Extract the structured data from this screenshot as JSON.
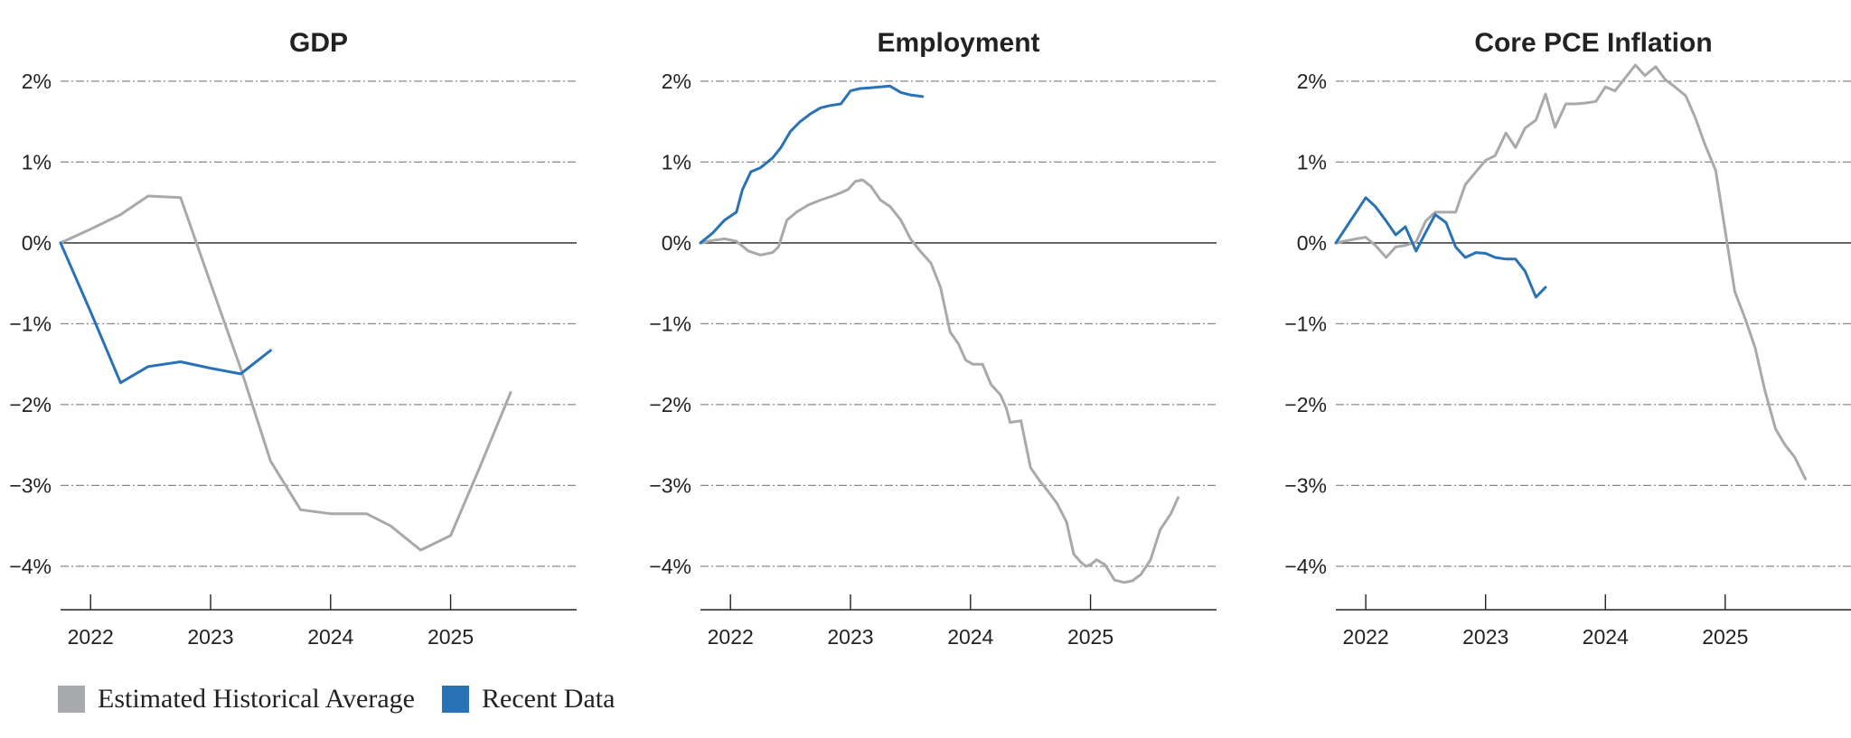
{
  "legend": [
    {
      "label": "Estimated Historical Average",
      "color": "#a7a9ac"
    },
    {
      "label": "Recent Data",
      "color": "#2a72b6"
    }
  ],
  "chart_data": [
    {
      "type": "line",
      "title": "GDP",
      "xlim": [
        2021.75,
        2026.05
      ],
      "ylim": [
        -4.5,
        2.2
      ],
      "yticks": [
        2,
        1,
        0,
        -1,
        -2,
        -3,
        -4
      ],
      "ytick_labels": [
        "2%",
        "1%",
        "0%",
        "−1%",
        "−2%",
        "−3%",
        "−4%"
      ],
      "xticks": [
        2022,
        2023,
        2024,
        2025
      ],
      "xtick_labels": [
        "2022",
        "2023",
        "2024",
        "2025"
      ],
      "grid": true,
      "series": [
        {
          "name": "Estimated Historical Average",
          "color": "#a7a9ac",
          "x": [
            2021.75,
            2022.0,
            2022.25,
            2022.48,
            2022.75,
            2023.0,
            2023.25,
            2023.5,
            2023.75,
            2024.0,
            2024.3,
            2024.5,
            2024.75,
            2025.0,
            2025.25,
            2025.5
          ],
          "y": [
            0,
            0.17,
            0.35,
            0.58,
            0.56,
            -0.5,
            -1.55,
            -2.7,
            -3.3,
            -3.35,
            -3.35,
            -3.5,
            -3.8,
            -3.62,
            -2.75,
            -1.85
          ]
        },
        {
          "name": "Recent Data",
          "color": "#2a72b6",
          "x": [
            2021.75,
            2022.0,
            2022.25,
            2022.48,
            2022.75,
            2023.0,
            2023.25,
            2023.5
          ],
          "y": [
            0,
            -0.85,
            -1.73,
            -1.53,
            -1.47,
            -1.55,
            -1.62,
            -1.33
          ]
        }
      ]
    },
    {
      "type": "line",
      "title": "Employment",
      "xlim": [
        2021.75,
        2026.05
      ],
      "ylim": [
        -4.5,
        2.2
      ],
      "yticks": [
        2,
        1,
        0,
        -1,
        -2,
        -3,
        -4
      ],
      "ytick_labels": [
        "2%",
        "1%",
        "0%",
        "−1%",
        "−2%",
        "−3%",
        "−4%"
      ],
      "xticks": [
        2022,
        2023,
        2024,
        2025
      ],
      "xtick_labels": [
        "2022",
        "2023",
        "2024",
        "2025"
      ],
      "grid": true,
      "series": [
        {
          "name": "Estimated Historical Average",
          "color": "#a7a9ac",
          "x": [
            2021.75,
            2021.85,
            2021.95,
            2022.05,
            2022.15,
            2022.25,
            2022.35,
            2022.4,
            2022.47,
            2022.55,
            2022.65,
            2022.75,
            2022.85,
            2022.92,
            2022.98,
            2023.04,
            2023.1,
            2023.17,
            2023.25,
            2023.33,
            2023.42,
            2023.5,
            2023.58,
            2023.67,
            2023.75,
            2023.83,
            2023.9,
            2023.96,
            2024.02,
            2024.1,
            2024.17,
            2024.25,
            2024.3,
            2024.33,
            2024.42,
            2024.5,
            2024.58,
            2024.65,
            2024.72,
            2024.8,
            2024.86,
            2024.92,
            2024.96,
            2025.0,
            2025.05,
            2025.12,
            2025.2,
            2025.28,
            2025.35,
            2025.42,
            2025.5,
            2025.58,
            2025.67,
            2025.73
          ],
          "y": [
            0,
            0.03,
            0.05,
            0.02,
            -0.1,
            -0.15,
            -0.12,
            -0.05,
            0.28,
            0.38,
            0.47,
            0.53,
            0.58,
            0.62,
            0.66,
            0.76,
            0.78,
            0.7,
            0.53,
            0.45,
            0.28,
            0.05,
            -0.1,
            -0.25,
            -0.55,
            -1.1,
            -1.25,
            -1.45,
            -1.5,
            -1.5,
            -1.75,
            -1.88,
            -2.05,
            -2.22,
            -2.2,
            -2.78,
            -2.95,
            -3.08,
            -3.22,
            -3.45,
            -3.85,
            -3.95,
            -4.0,
            -3.98,
            -3.92,
            -3.98,
            -4.17,
            -4.2,
            -4.18,
            -4.1,
            -3.92,
            -3.55,
            -3.35,
            -3.15
          ]
        },
        {
          "name": "Recent Data",
          "color": "#2a72b6",
          "x": [
            2021.75,
            2021.85,
            2021.95,
            2022.05,
            2022.1,
            2022.17,
            2022.25,
            2022.35,
            2022.42,
            2022.5,
            2022.58,
            2022.67,
            2022.75,
            2022.83,
            2022.92,
            2023.0,
            2023.08,
            2023.17,
            2023.33,
            2023.42,
            2023.5,
            2023.6
          ],
          "y": [
            0,
            0.12,
            0.28,
            0.38,
            0.66,
            0.88,
            0.93,
            1.05,
            1.18,
            1.38,
            1.5,
            1.6,
            1.67,
            1.7,
            1.72,
            1.88,
            1.91,
            1.92,
            1.94,
            1.86,
            1.83,
            1.81
          ]
        }
      ]
    },
    {
      "type": "line",
      "title": "Core PCE Inflation",
      "xlim": [
        2021.75,
        2026.05
      ],
      "ylim": [
        -4.5,
        2.2
      ],
      "yticks": [
        2,
        1,
        0,
        -1,
        -2,
        -3,
        -4
      ],
      "ytick_labels": [
        "2%",
        "1%",
        "0%",
        "−1%",
        "−2%",
        "−3%",
        "−4%"
      ],
      "xticks": [
        2022,
        2023,
        2024,
        2025
      ],
      "xtick_labels": [
        "2022",
        "2023",
        "2024",
        "2025"
      ],
      "grid": true,
      "series": [
        {
          "name": "Estimated Historical Average",
          "color": "#a7a9ac",
          "x": [
            2021.75,
            2021.92,
            2022.0,
            2022.08,
            2022.17,
            2022.25,
            2022.33,
            2022.42,
            2022.5,
            2022.58,
            2022.67,
            2022.75,
            2022.83,
            2022.92,
            2023.0,
            2023.08,
            2023.17,
            2023.25,
            2023.33,
            2023.42,
            2023.5,
            2023.58,
            2023.67,
            2023.75,
            2023.83,
            2023.92,
            2024.0,
            2024.08,
            2024.17,
            2024.25,
            2024.33,
            2024.42,
            2024.5,
            2024.58,
            2024.67,
            2024.75,
            2024.83,
            2024.92,
            2025.0,
            2025.08,
            2025.17,
            2025.25,
            2025.33,
            2025.42,
            2025.5,
            2025.58,
            2025.67
          ],
          "y": [
            0,
            0.05,
            0.07,
            -0.03,
            -0.18,
            -0.05,
            -0.03,
            0.01,
            0.27,
            0.38,
            0.38,
            0.38,
            0.72,
            0.88,
            1.02,
            1.08,
            1.36,
            1.18,
            1.42,
            1.52,
            1.84,
            1.43,
            1.72,
            1.72,
            1.73,
            1.75,
            1.93,
            1.88,
            2.05,
            2.2,
            2.07,
            2.18,
            2.02,
            1.93,
            1.82,
            1.55,
            1.22,
            0.9,
            0.15,
            -0.6,
            -0.95,
            -1.3,
            -1.82,
            -2.3,
            -2.5,
            -2.65,
            -2.92
          ]
        },
        {
          "name": "Recent Data",
          "color": "#2a72b6",
          "x": [
            2021.75,
            2021.92,
            2022.0,
            2022.08,
            2022.17,
            2022.25,
            2022.33,
            2022.42,
            2022.5,
            2022.58,
            2022.67,
            2022.75,
            2022.83,
            2022.92,
            2023.0,
            2023.08,
            2023.17,
            2023.25,
            2023.33,
            2023.42,
            2023.5
          ],
          "y": [
            0,
            0.38,
            0.56,
            0.45,
            0.27,
            0.1,
            0.2,
            -0.1,
            0.13,
            0.35,
            0.25,
            -0.05,
            -0.18,
            -0.12,
            -0.13,
            -0.18,
            -0.2,
            -0.2,
            -0.35,
            -0.67,
            -0.55
          ]
        }
      ]
    }
  ]
}
